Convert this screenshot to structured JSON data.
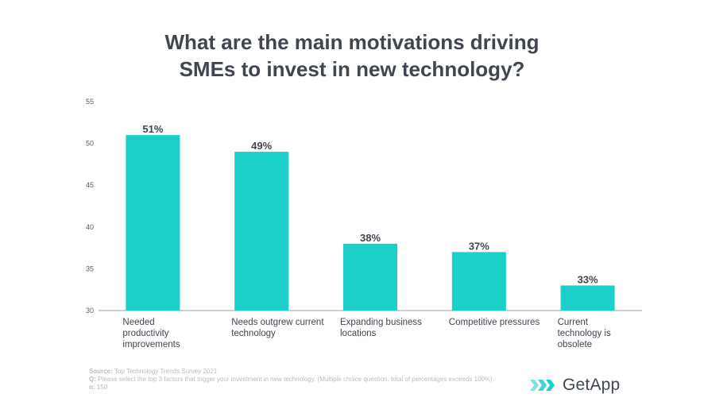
{
  "chart_data": {
    "type": "bar",
    "title_lines": [
      "What are the main motivations driving",
      "SMEs to invest in new technology?"
    ],
    "categories": [
      [
        "Needed",
        "productivity",
        "improvements"
      ],
      [
        "Needs outgrew current",
        "technology"
      ],
      [
        "Expanding business",
        "locations"
      ],
      [
        "Competitive pressures"
      ],
      [
        "Current",
        "technology is",
        "obsolete"
      ]
    ],
    "values": [
      51,
      49,
      38,
      37,
      33
    ],
    "data_labels": [
      "51%",
      "49%",
      "38%",
      "37%",
      "33%"
    ],
    "y_ticks": [
      30,
      35,
      40,
      45,
      50,
      55
    ],
    "ylim": [
      30,
      55
    ],
    "bar_color": "#1ccfc9",
    "grid": false
  },
  "footer": {
    "source_label": "Source:",
    "source_text": " Top Technology Trends Survey 2021",
    "q_label": "Q:",
    "q_text": " Please select the top 3 factors that trigger your investment in new technology. (Multiple choice question, total of percentages exceeds 100%)",
    "n_label": "n:",
    "n_text": " 150"
  },
  "brand": {
    "name": "GetApp",
    "icon": "getapp-chevrons-icon",
    "accent": "#1ccfc9"
  }
}
